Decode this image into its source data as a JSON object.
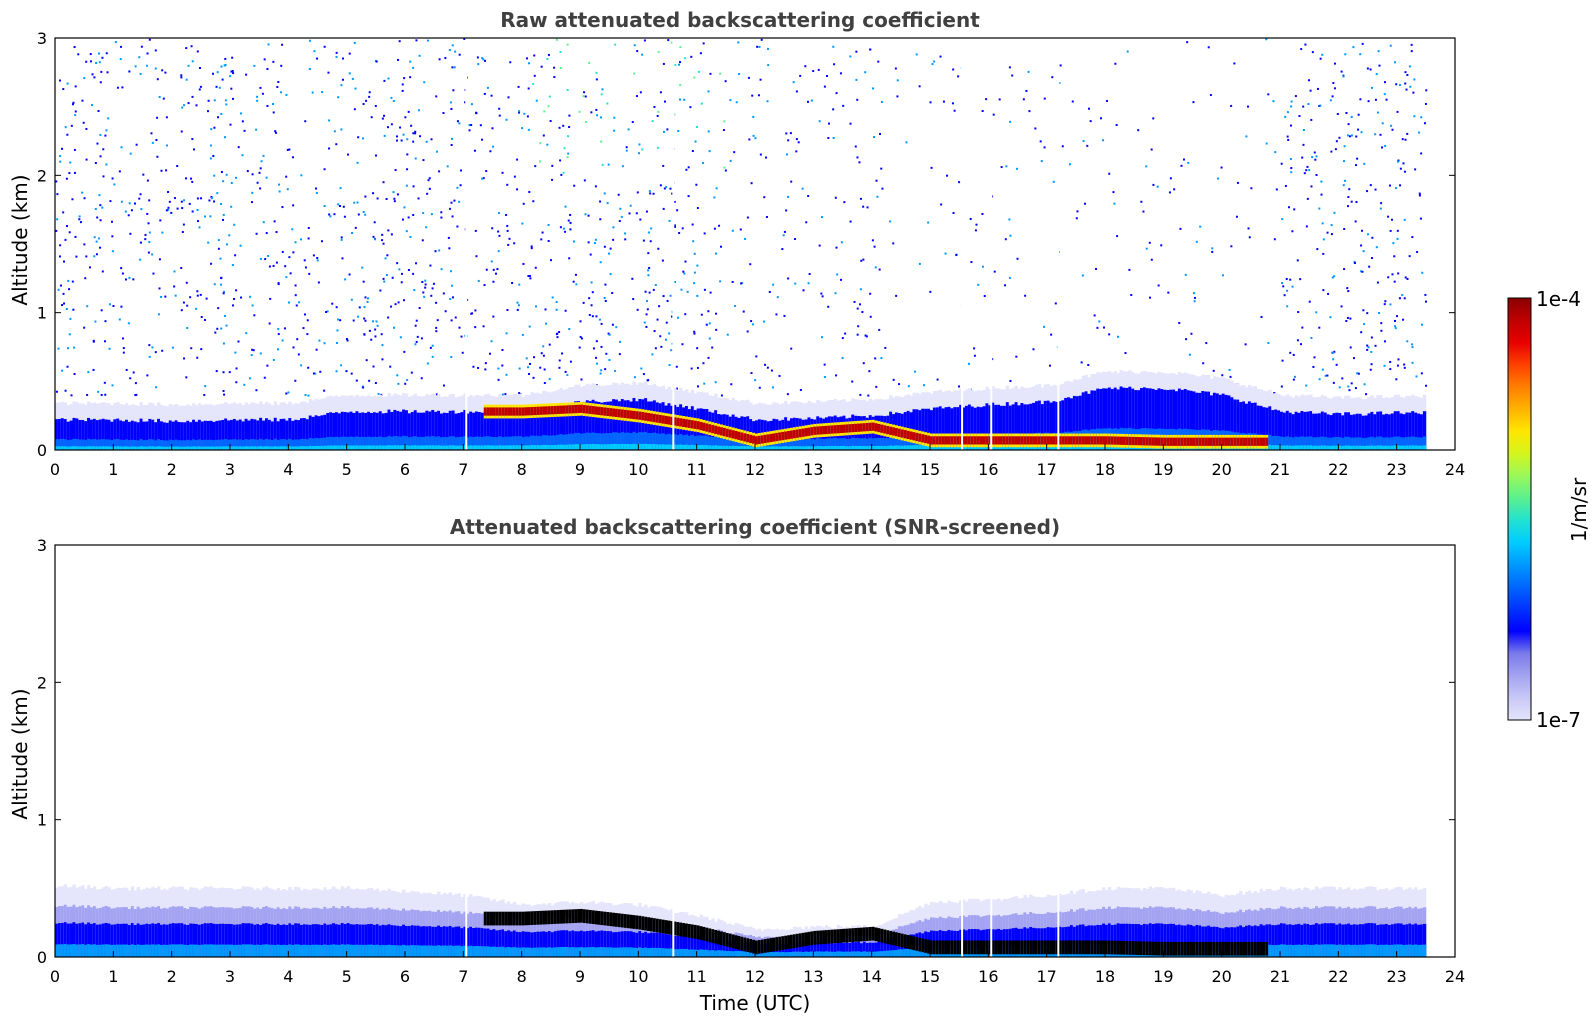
{
  "chart_data": [
    {
      "type": "heatmap",
      "id": "raw",
      "title": "Raw attenuated backscattering coefficient",
      "xlabel": "",
      "ylabel": "Altitude (km)",
      "xlim": [
        0,
        24
      ],
      "ylim": [
        0,
        3
      ],
      "xticks": [
        "0",
        "1",
        "2",
        "3",
        "4",
        "5",
        "6",
        "7",
        "8",
        "9",
        "10",
        "11",
        "12",
        "13",
        "14",
        "15",
        "16",
        "17",
        "18",
        "19",
        "20",
        "21",
        "22",
        "23",
        "24"
      ],
      "yticks": [
        "0",
        "1",
        "2",
        "3"
      ],
      "data_end_hour": 23.5,
      "gap_hours": [
        7.05,
        10.6,
        15.55,
        16.05,
        17.2
      ],
      "layer_top_km": [
        0.22,
        0.22,
        0.21,
        0.22,
        0.22,
        0.28,
        0.28,
        0.28,
        0.28,
        0.35,
        0.37,
        0.3,
        0.22,
        0.23,
        0.25,
        0.3,
        0.33,
        0.35,
        0.45,
        0.45,
        0.4,
        0.28,
        0.26,
        0.27,
        0.27
      ],
      "peak_height_km": [
        null,
        null,
        null,
        null,
        null,
        null,
        null,
        null,
        0.28,
        0.3,
        0.25,
        0.18,
        0.07,
        0.14,
        0.17,
        0.07,
        0.07,
        0.07,
        0.07,
        0.06,
        0.06,
        null,
        null,
        null,
        null
      ]
    },
    {
      "type": "heatmap",
      "id": "snr",
      "title": "Attenuated backscattering coefficient (SNR-screened)",
      "xlabel": "Time (UTC)",
      "ylabel": "Altitude (km)",
      "xlim": [
        0,
        24
      ],
      "ylim": [
        0,
        3
      ],
      "xticks": [
        "0",
        "1",
        "2",
        "3",
        "4",
        "5",
        "6",
        "7",
        "8",
        "9",
        "10",
        "11",
        "12",
        "13",
        "14",
        "15",
        "16",
        "17",
        "18",
        "19",
        "20",
        "21",
        "22",
        "23",
        "24"
      ],
      "yticks": [
        "0",
        "1",
        "2",
        "3"
      ],
      "data_end_hour": 23.5,
      "gap_hours": [
        7.05,
        10.6,
        15.55,
        16.05,
        17.2
      ],
      "layer_top_km": [
        0.52,
        0.5,
        0.5,
        0.5,
        0.5,
        0.5,
        0.48,
        0.45,
        0.38,
        0.4,
        0.38,
        0.3,
        0.2,
        0.22,
        0.22,
        0.4,
        0.42,
        0.45,
        0.5,
        0.5,
        0.45,
        0.5,
        0.5,
        0.5,
        0.5
      ]
    }
  ],
  "colorbar": {
    "label": "1/m/sr",
    "max_label": "1e-4",
    "min_label": "1e-7",
    "colors": [
      "#e5e5fb",
      "#c8c8f6",
      "#a3a3f1",
      "#7a7aeb",
      "#0000ff",
      "#0033ff",
      "#0066ff",
      "#0099ff",
      "#00ccff",
      "#22e2cf",
      "#5cf08f",
      "#9af85a",
      "#d4f51c",
      "#ffe600",
      "#ffb300",
      "#ff7f00",
      "#ff4000",
      "#e60000",
      "#c00000",
      "#8b0000"
    ]
  }
}
